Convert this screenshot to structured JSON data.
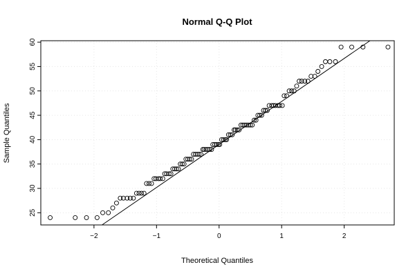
{
  "chart_data": {
    "type": "scatter",
    "title": "Normal Q-Q Plot",
    "xlabel": "Theoretical Quantiles",
    "ylabel": "Sample Quantiles",
    "xlim": [
      -2.85,
      2.8
    ],
    "ylim": [
      22.5,
      60.3
    ],
    "xticks": [
      -2,
      -1,
      0,
      1,
      2
    ],
    "yticks": [
      25,
      30,
      35,
      40,
      45,
      50,
      55,
      60
    ],
    "grid": true,
    "reference_line": {
      "points": [
        [
          -2.2,
          19.6
        ],
        [
          2.65,
          62.4
        ]
      ]
    },
    "series": [
      {
        "x": [
          -2.7,
          -2.3,
          -2.12,
          -1.95,
          -1.86,
          -1.77,
          -1.7,
          -1.64,
          -1.58,
          -1.53,
          -1.47,
          -1.42,
          -1.37,
          -1.32,
          -1.28,
          -1.24,
          -1.2,
          -1.16,
          -1.12,
          -1.08,
          -1.04,
          -1.01,
          -0.97,
          -0.94,
          -0.9,
          -0.87,
          -0.84,
          -0.8,
          -0.77,
          -0.74,
          -0.71,
          -0.68,
          -0.65,
          -0.62,
          -0.59,
          -0.56,
          -0.53,
          -0.5,
          -0.47,
          -0.44,
          -0.41,
          -0.38,
          -0.35,
          -0.32,
          -0.29,
          -0.26,
          -0.24,
          -0.21,
          -0.18,
          -0.15,
          -0.12,
          -0.1,
          -0.07,
          -0.04,
          -0.01,
          0.01,
          0.04,
          0.07,
          0.1,
          0.12,
          0.15,
          0.18,
          0.21,
          0.24,
          0.26,
          0.29,
          0.32,
          0.35,
          0.38,
          0.41,
          0.44,
          0.47,
          0.5,
          0.53,
          0.56,
          0.59,
          0.62,
          0.65,
          0.68,
          0.71,
          0.74,
          0.77,
          0.8,
          0.84,
          0.87,
          0.9,
          0.94,
          0.97,
          1.01,
          1.04,
          1.08,
          1.12,
          1.16,
          1.2,
          1.24,
          1.28,
          1.32,
          1.37,
          1.42,
          1.47,
          1.53,
          1.58,
          1.64,
          1.7,
          1.77,
          1.86,
          1.95,
          2.12,
          2.3,
          2.7
        ],
        "y": [
          24,
          24,
          24,
          24,
          25,
          25,
          26,
          27,
          28,
          28,
          28,
          28,
          28,
          29,
          29,
          29,
          29,
          31,
          31,
          31,
          32,
          32,
          32,
          32,
          32,
          33,
          33,
          33,
          33,
          34,
          34,
          34,
          34,
          35,
          35,
          35,
          36,
          36,
          36,
          36,
          37,
          37,
          37,
          37,
          37,
          38,
          38,
          38,
          38,
          38,
          38,
          39,
          39,
          39,
          39,
          39,
          40,
          40,
          40,
          40,
          41,
          41,
          41,
          42,
          42,
          42,
          42,
          43,
          43,
          43,
          43,
          43,
          43,
          43,
          44,
          44,
          45,
          45,
          45,
          46,
          46,
          46,
          47,
          47,
          47,
          47,
          47,
          47,
          47,
          49,
          49,
          50,
          50,
          50,
          51,
          52,
          52,
          52,
          52,
          53,
          53,
          54,
          55,
          56,
          56,
          56,
          59,
          59,
          59,
          59
        ]
      }
    ]
  }
}
